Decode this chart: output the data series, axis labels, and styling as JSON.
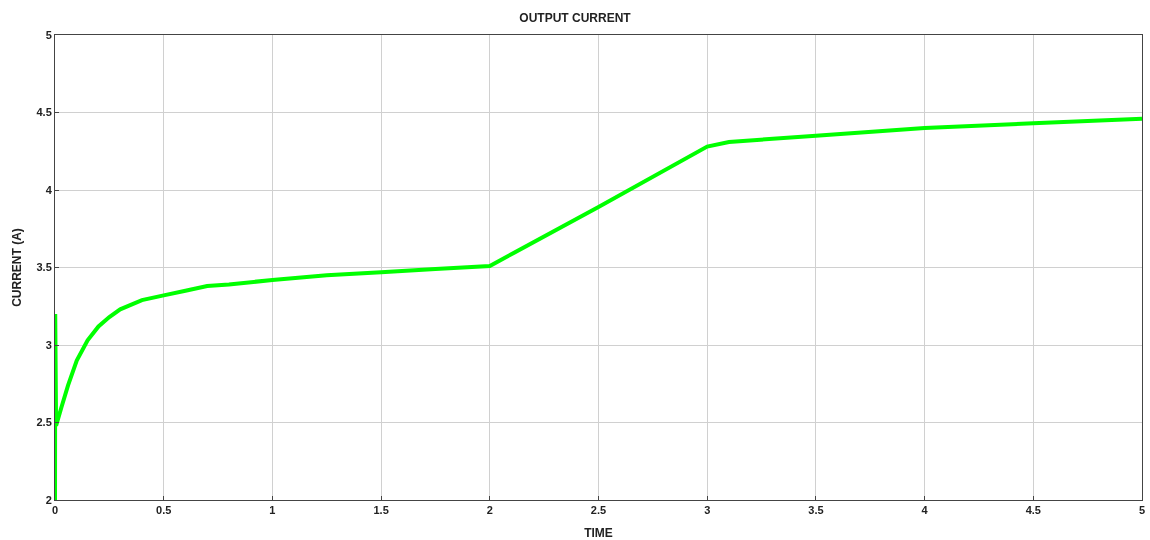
{
  "chart_data": {
    "type": "line",
    "title": "OUTPUT CURRENT",
    "xlabel": "TIME",
    "ylabel": "CURRENT (A)",
    "x": [
      0,
      0.001,
      0.005,
      0.03,
      0.06,
      0.1,
      0.15,
      0.2,
      0.25,
      0.3,
      0.4,
      0.5,
      0.6,
      0.7,
      0.8,
      1.0,
      1.25,
      1.5,
      1.75,
      2.0,
      2.5,
      3.0,
      3.1,
      3.5,
      4.0,
      4.5,
      5.0
    ],
    "series": [
      {
        "color": "#00ff00",
        "values": [
          2,
          3.2,
          2.48,
          2.6,
          2.74,
          2.9,
          3.03,
          3.12,
          3.18,
          3.23,
          3.29,
          3.32,
          3.35,
          3.38,
          3.39,
          3.42,
          3.45,
          3.47,
          3.49,
          3.51,
          3.89,
          4.28,
          4.31,
          4.35,
          4.4,
          4.43,
          4.46
        ]
      }
    ],
    "xlim": [
      0,
      5
    ],
    "xticks": [
      0,
      0.5,
      1,
      1.5,
      2,
      2.5,
      3,
      3.5,
      4,
      4.5,
      5
    ],
    "ylim": [
      2,
      5
    ],
    "yticks": [
      2,
      2.5,
      3,
      3.5,
      4,
      4.5,
      5
    ],
    "grid": true,
    "marker": "none",
    "line_style": "solid"
  }
}
